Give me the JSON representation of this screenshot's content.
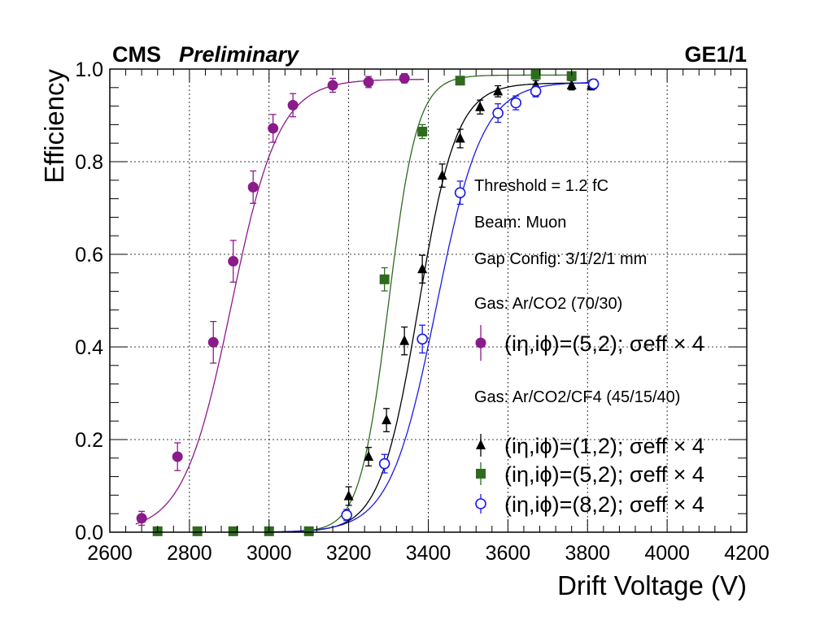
{
  "header": {
    "experiment": "CMS",
    "status": "Preliminary",
    "detector": "GE1/1"
  },
  "chart_data": {
    "type": "scatter",
    "xlabel": "Drift Voltage (V)",
    "ylabel": "Efficiency",
    "xlim": [
      2600,
      4200
    ],
    "ylim": [
      0,
      1.0
    ],
    "xticks": [
      2600,
      2800,
      3000,
      3200,
      3400,
      3600,
      3800,
      4000,
      4200
    ],
    "yticks": [
      0.0,
      0.2,
      0.4,
      0.6,
      0.8,
      1.0
    ],
    "grid": true,
    "annotations": [
      "Threshold = 1.2 fC",
      "Beam: Muon",
      "Gap Config: 3/1/2/1 mm"
    ],
    "legend_position": "right",
    "series": [
      {
        "group": "Gas: Ar/CO2 (70/30)",
        "name": "(iη,iϕ)=(5,2); σeff × 4",
        "color": "#8B1A8B",
        "marker": "filled-circle",
        "x": [
          2680,
          2770,
          2860,
          2910,
          2960,
          3010,
          3060,
          3160,
          3250,
          3340
        ],
        "y": [
          0.03,
          0.163,
          0.41,
          0.585,
          0.745,
          0.872,
          0.922,
          0.965,
          0.972,
          0.98
        ],
        "yerr": [
          0.015,
          0.03,
          0.045,
          0.045,
          0.035,
          0.03,
          0.025,
          0.015,
          0.012,
          0.01
        ],
        "fit": {
          "lo": 0.0,
          "hi": 0.978,
          "x50": 2905,
          "width": 60,
          "xmin": 2665,
          "xmax": 3390
        }
      },
      {
        "group": "Gas: Ar/CO2/CF4 (45/15/40)",
        "name": "(iη,iϕ)=(1,2); σeff × 4",
        "color": "#000000",
        "marker": "filled-triangle",
        "x": [
          3200,
          3250,
          3295,
          3340,
          3385,
          3435,
          3480,
          3530,
          3575,
          3670,
          3760,
          3810
        ],
        "y": [
          0.078,
          0.163,
          0.242,
          0.413,
          0.568,
          0.77,
          0.85,
          0.918,
          0.952,
          0.965,
          0.965,
          0.965
        ],
        "yerr": [
          0.02,
          0.02,
          0.025,
          0.03,
          0.03,
          0.025,
          0.02,
          0.015,
          0.012,
          0.01,
          0.01,
          0.01
        ],
        "fit": {
          "lo": 0.0,
          "hi": 0.97,
          "x50": 3375,
          "width": 48,
          "xmin": 3000,
          "xmax": 3810
        }
      },
      {
        "group": "Gas: Ar/CO2/CF4 (45/15/40)",
        "name": "(iη,iϕ)=(5,2); σeff × 4",
        "color": "#2E6B1F",
        "marker": "filled-square",
        "x": [
          2720,
          2820,
          2910,
          3000,
          3100,
          3290,
          3385,
          3480,
          3670,
          3760
        ],
        "y": [
          0.002,
          0.002,
          0.002,
          0.002,
          0.002,
          0.546,
          0.865,
          0.975,
          0.988,
          0.985
        ],
        "yerr": [
          0.0,
          0.0,
          0.0,
          0.0,
          0.0,
          0.025,
          0.015,
          0.008,
          0.005,
          0.005
        ],
        "fit": {
          "lo": 0.0,
          "hi": 0.987,
          "x50": 3300,
          "width": 36,
          "xmin": 3000,
          "xmax": 3760
        }
      },
      {
        "group": "Gas: Ar/CO2/CF4 (45/15/40)",
        "name": "(iη,iϕ)=(8,2); σeff × 4",
        "color": "#1A1AE6",
        "marker": "open-circle",
        "x": [
          3195,
          3290,
          3385,
          3480,
          3575,
          3620,
          3670,
          3815
        ],
        "y": [
          0.037,
          0.148,
          0.417,
          0.733,
          0.905,
          0.927,
          0.952,
          0.968
        ],
        "yerr": [
          0.012,
          0.02,
          0.03,
          0.025,
          0.02,
          0.015,
          0.012,
          0.01
        ],
        "fit": {
          "lo": 0.0,
          "hi": 0.972,
          "x50": 3420,
          "width": 58,
          "xmin": 3000,
          "xmax": 3815
        }
      }
    ]
  }
}
